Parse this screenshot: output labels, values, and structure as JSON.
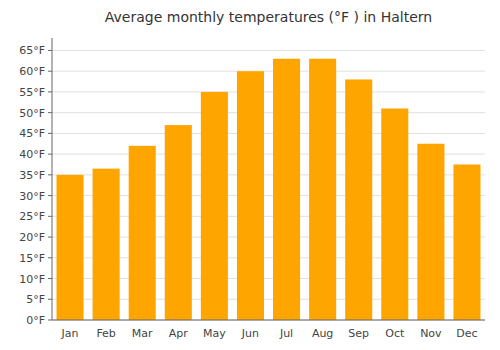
{
  "chart_data": {
    "type": "bar",
    "title": "Average monthly temperatures (°F ) in Haltern",
    "categories": [
      "Jan",
      "Feb",
      "Mar",
      "Apr",
      "May",
      "Jun",
      "Jul",
      "Aug",
      "Sep",
      "Oct",
      "Nov",
      "Dec"
    ],
    "values": [
      35,
      36.5,
      42,
      47,
      55,
      60,
      63,
      63,
      58,
      51,
      42.5,
      37.5
    ],
    "color": "#FFA500",
    "ylim": [
      0,
      68
    ],
    "yticks": [
      {
        "value": 0,
        "label": "0°F"
      },
      {
        "value": 5,
        "label": "5°F"
      },
      {
        "value": 10,
        "label": "10°F"
      },
      {
        "value": 15,
        "label": "15°F"
      },
      {
        "value": 20,
        "label": "20°F"
      },
      {
        "value": 25,
        "label": "25°F"
      },
      {
        "value": 30,
        "label": "30°F"
      },
      {
        "value": 35,
        "label": "35°F"
      },
      {
        "value": 40,
        "label": "40°F"
      },
      {
        "value": 45,
        "label": "45°F"
      },
      {
        "value": 50,
        "label": "50°F"
      },
      {
        "value": 55,
        "label": "55°F"
      },
      {
        "value": 60,
        "label": "60°F"
      },
      {
        "value": 65,
        "label": "65°F"
      }
    ],
    "grid": true
  }
}
